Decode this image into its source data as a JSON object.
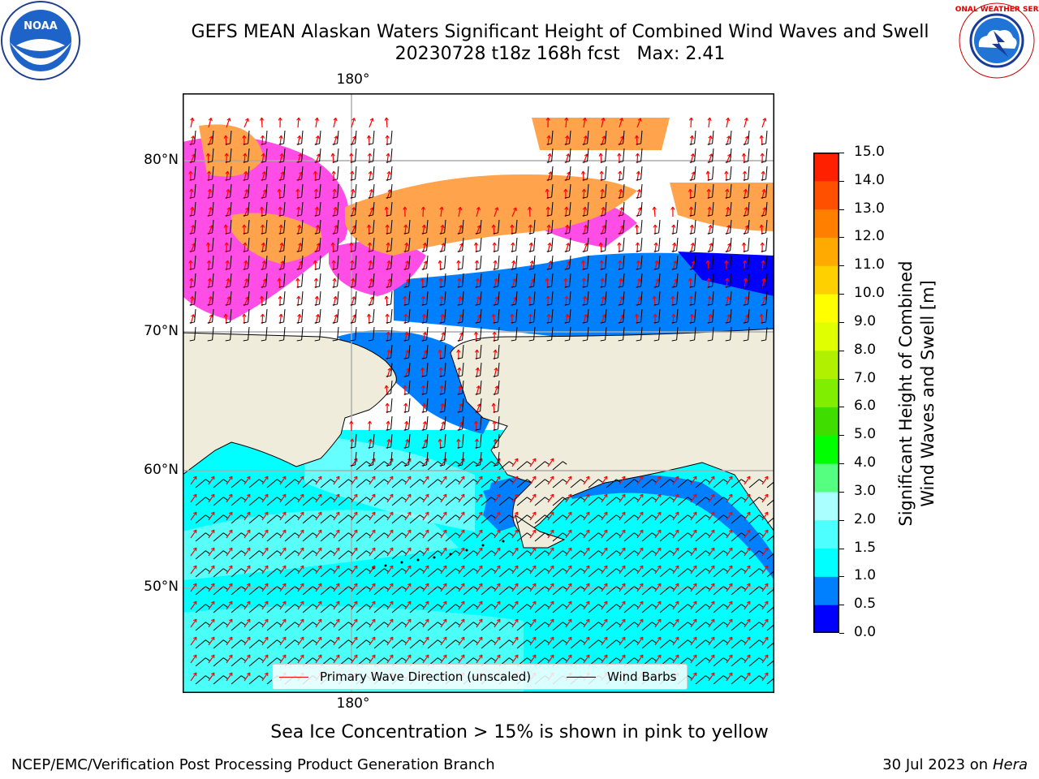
{
  "title": {
    "line1": "GEFS MEAN Alaskan Waters Significant Height of Combined Wind Waves and Swell",
    "line2": "20230728 t18z 168h fcst   Max: 2.41"
  },
  "logos": {
    "noaa": "NOAA",
    "nws_text": "NATIONAL WEATHER SERVICE"
  },
  "map": {
    "lat_labels": [
      "80°N",
      "70°N",
      "60°N",
      "50°N"
    ],
    "lon_label_top": "180°",
    "lon_label_bottom": "180°",
    "colors": {
      "land": "#efecdc",
      "ocean_low": "#00ffff",
      "ocean_mid": "#4dfaf0",
      "shelf": "#0080ff",
      "deep_blue": "#0000ff",
      "ice_pink": "#ff4de6",
      "ice_orange": "#ffa44d",
      "wave_arrow": "#ff0000",
      "wind_barb": "#000000"
    }
  },
  "legend": {
    "wave_label": "Primary Wave Direction (unscaled)",
    "wind_label": "Wind Barbs",
    "wave_color": "#ff0000",
    "wind_color": "#000000"
  },
  "colorbar": {
    "label_line1": "Significant Height of Combined",
    "label_line2": "Wind Waves and Swell [m]",
    "ticks": [
      "0.0",
      "0.5",
      "1.0",
      "1.5",
      "2.0",
      "3.0",
      "4.0",
      "5.0",
      "6.0",
      "7.0",
      "8.0",
      "9.0",
      "10.0",
      "11.0",
      "12.0",
      "13.0",
      "14.0",
      "15.0"
    ],
    "colors": [
      "#0000ff",
      "#0080ff",
      "#00ffff",
      "#4dffff",
      "#aaffff",
      "#55ff80",
      "#00ff00",
      "#40dd00",
      "#80ee00",
      "#b0f000",
      "#e0ff00",
      "#ffff00",
      "#ffd000",
      "#ffaa00",
      "#ff8000",
      "#ff5000",
      "#ff2000"
    ]
  },
  "bottom_note": "Sea Ice Concentration > 15% is shown in pink to yellow",
  "footer": {
    "left": "NCEP/EMC/Verification Post Processing Product Generation Branch",
    "right_date": "30 Jul 2023 on ",
    "right_machine": "Hera"
  }
}
